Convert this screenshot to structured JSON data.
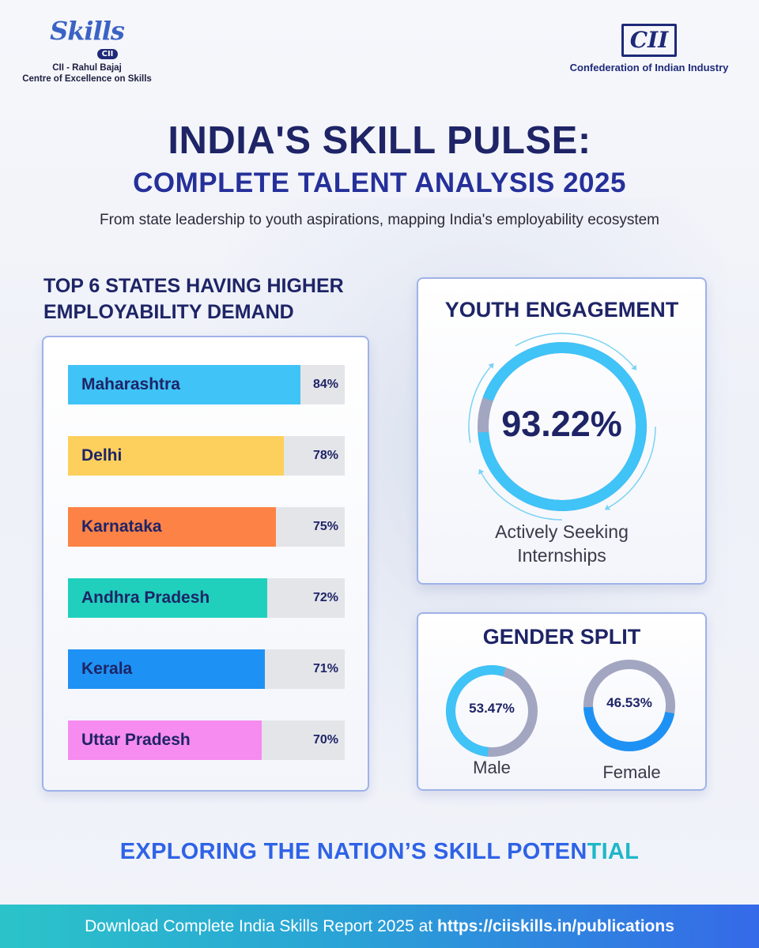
{
  "header": {
    "left_logo": {
      "mark": "Skills",
      "badge": "CII",
      "line1": "CII - Rahul Bajaj",
      "line2": "Centre of Excellence on Skills"
    },
    "right_logo": {
      "mark": "CII",
      "name": "Confederation of Indian Industry"
    }
  },
  "title": {
    "line1": "INDIA'S SKILL PULSE:",
    "line2": "COMPLETE TALENT ANALYSIS 2025",
    "subtitle": "From state leadership to youth aspirations, mapping India's employability ecosystem"
  },
  "states": {
    "heading": "TOP 6 STATES HAVING HIGHER EMPLOYABILITY DEMAND",
    "color_list": [
      "#40c3f7",
      "#fdd05d",
      "#fd8246",
      "#20d0bd",
      "#1e92f4",
      "#f68bf0"
    ]
  },
  "youth": {
    "title": "YOUTH ENGAGEMENT",
    "value": "93.22%",
    "caption_line1": "Actively Seeking",
    "caption_line2": "Internships",
    "ring_color": "#40c3f7",
    "rest_color": "#a3a6c1"
  },
  "gender": {
    "title": "GENDER SPLIT",
    "male_label": "Male",
    "female_label": "Female",
    "male_value": "53.47%",
    "female_value": "46.53%",
    "male_color": "#40c3f7",
    "female_color": "#1e92f4",
    "rest_color": "#a3a6c1"
  },
  "tagline": {
    "part1": "EXPLORING THE NATION’S SKILL POTEN",
    "part2": "TIAL"
  },
  "footer": {
    "text": "Download Complete India Skills Report 2025 at ",
    "link": "https://ciiskills.in/publications"
  },
  "chart_data": [
    {
      "type": "bar",
      "title": "TOP 6 STATES HAVING HIGHER EMPLOYABILITY DEMAND",
      "categories": [
        "Maharashtra",
        "Delhi",
        "Karnataka",
        "Andhra Pradesh",
        "Kerala",
        "Uttar Pradesh"
      ],
      "values": [
        84,
        78,
        75,
        72,
        71,
        70
      ],
      "value_labels": [
        "84%",
        "78%",
        "75%",
        "72%",
        "71%",
        "70%"
      ],
      "orientation": "horizontal",
      "ylim": [
        0,
        100
      ]
    },
    {
      "type": "pie",
      "title": "YOUTH ENGAGEMENT",
      "categories": [
        "Actively Seeking Internships"
      ],
      "values": [
        93.22
      ]
    },
    {
      "type": "pie",
      "title": "GENDER SPLIT",
      "categories": [
        "Male",
        "Female"
      ],
      "values": [
        53.47,
        46.53
      ]
    }
  ]
}
